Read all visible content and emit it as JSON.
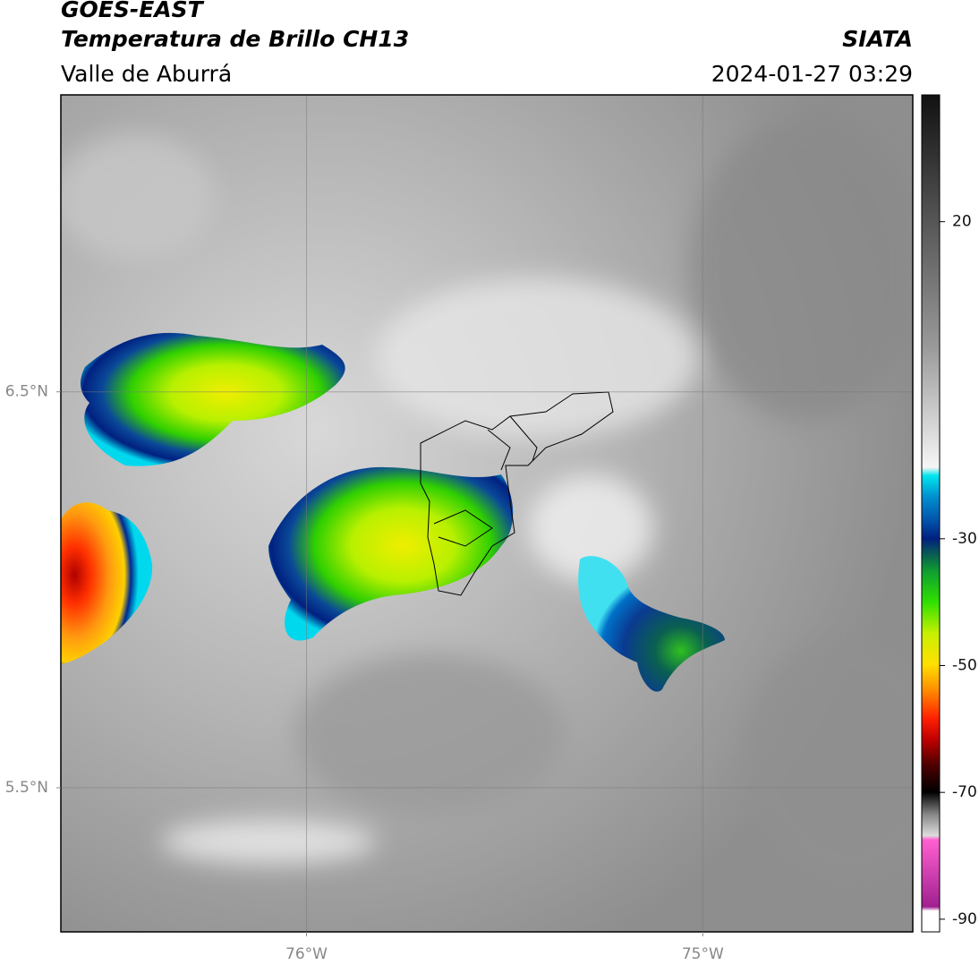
{
  "chart_data": {
    "type": "map",
    "title": "GOES-EAST",
    "subtitle": "Temperatura de Brillo CH13",
    "region": "Valle de Aburrá",
    "source": "SIATA",
    "datetime": "2024-01-27 03:29",
    "xlim": [
      -76.62,
      -74.47
    ],
    "xticks": [
      {
        "value": -76,
        "label": "76°W"
      },
      {
        "value": -75,
        "label": "75°W"
      }
    ],
    "ylim": [
      5.136,
      7.25
    ],
    "yticks": [
      {
        "value": 6.5,
        "label": "6.5°N"
      },
      {
        "value": 5.5,
        "label": "5.5°N"
      }
    ],
    "colorbar": {
      "clim": [
        -92,
        40
      ],
      "ticks": [
        20,
        -30,
        -50,
        -70,
        -90
      ]
    },
    "grid": true
  }
}
